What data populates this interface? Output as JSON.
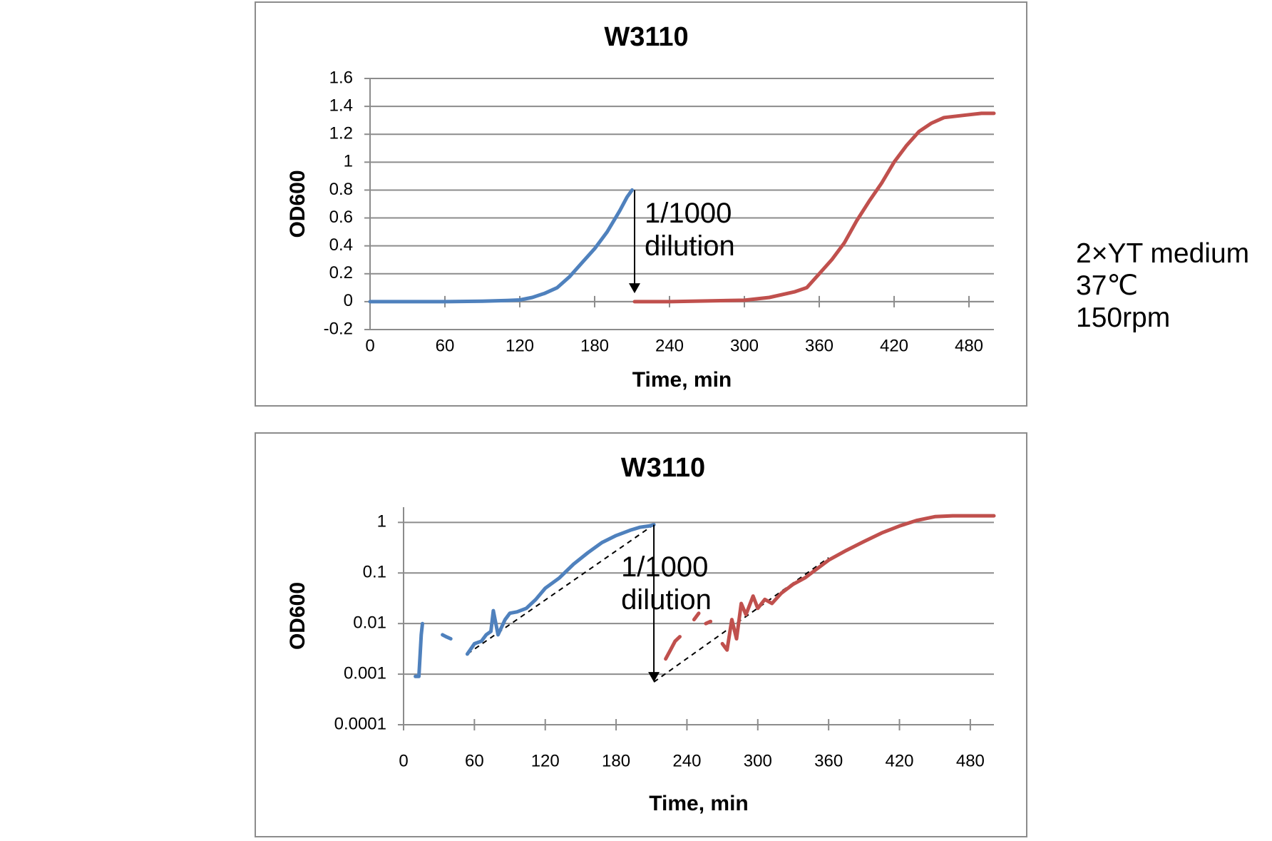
{
  "conditions": [
    "2×YT medium",
    "37℃",
    "150rpm"
  ],
  "colors": {
    "series1": "#4f81bd",
    "series2": "#c0504d",
    "grid": "#8c8c8c",
    "axis": "#8c8c8c"
  },
  "chart_data": [
    {
      "type": "line",
      "title": "W3110",
      "xlabel": "Time, min",
      "ylabel": "OD600",
      "xlim": [
        0,
        500
      ],
      "ylim": [
        -0.2,
        1.6
      ],
      "yscale": "linear",
      "xticks": [
        0,
        60,
        120,
        180,
        240,
        300,
        360,
        420,
        480
      ],
      "yticks": [
        -0.2,
        0,
        0.2,
        0.4,
        0.6,
        0.8,
        1,
        1.2,
        1.4,
        1.6
      ],
      "ytick_labels": [
        "-0.2",
        "0",
        "0.2",
        "0.4",
        "0.6",
        "0.8",
        "1",
        "1.2",
        "1.4",
        "1.6"
      ],
      "grid": true,
      "series": [
        {
          "color": "#4f81bd",
          "x": [
            0,
            30,
            60,
            90,
            110,
            120,
            130,
            140,
            150,
            160,
            170,
            180,
            190,
            200,
            206,
            210
          ],
          "y": [
            0,
            0,
            0,
            0.003,
            0.008,
            0.012,
            0.03,
            0.06,
            0.1,
            0.18,
            0.28,
            0.38,
            0.5,
            0.65,
            0.75,
            0.8
          ]
        },
        {
          "color": "#c0504d",
          "x": [
            212,
            240,
            270,
            300,
            320,
            340,
            350,
            360,
            370,
            380,
            390,
            400,
            410,
            420,
            430,
            440,
            450,
            460,
            470,
            480,
            490,
            500
          ],
          "y": [
            0,
            0,
            0.005,
            0.01,
            0.03,
            0.07,
            0.1,
            0.2,
            0.3,
            0.42,
            0.58,
            0.72,
            0.85,
            1.0,
            1.12,
            1.22,
            1.28,
            1.32,
            1.33,
            1.34,
            1.35,
            1.35
          ]
        }
      ],
      "annotation": {
        "lines": [
          "1/1000",
          "dilution"
        ],
        "arrow_x": 212,
        "arrow_from": 0.8,
        "arrow_to": 0.06
      }
    },
    {
      "type": "line",
      "title": "W3110",
      "xlabel": "Time, min",
      "ylabel": "OD600",
      "xlim": [
        0,
        500
      ],
      "ylim": [
        0.0001,
        2
      ],
      "yscale": "log",
      "xticks": [
        0,
        60,
        120,
        180,
        240,
        300,
        360,
        420,
        480
      ],
      "yticks": [
        0.0001,
        0.001,
        0.01,
        0.1,
        1
      ],
      "ytick_labels": [
        "0.0001",
        "0.001",
        "0.01",
        "0.1",
        "1"
      ],
      "grid": true,
      "series": [
        {
          "color": "#4f81bd",
          "segments": [
            {
              "x": [
                10,
                13,
                15,
                16
              ],
              "y": [
                0.0009,
                0.0009,
                0.006,
                0.01
              ]
            },
            {
              "x": [
                33,
                36,
                40
              ],
              "y": [
                0.006,
                0.0055,
                0.005
              ]
            },
            {
              "x": [
                54,
                60,
                66,
                70,
                74,
                76,
                80,
                86,
                90,
                96,
                104,
                112,
                120,
                132,
                144,
                156,
                168,
                180,
                192,
                200,
                208,
                212
              ],
              "y": [
                0.0025,
                0.004,
                0.0045,
                0.006,
                0.007,
                0.018,
                0.006,
                0.012,
                0.016,
                0.017,
                0.02,
                0.03,
                0.05,
                0.08,
                0.15,
                0.25,
                0.4,
                0.55,
                0.7,
                0.8,
                0.85,
                0.9
              ]
            }
          ]
        },
        {
          "color": "#c0504d",
          "segments": [
            {
              "x": [
                222,
                226,
                230,
                234
              ],
              "y": [
                0.002,
                0.003,
                0.0045,
                0.0055
              ]
            },
            {
              "x": [
                246,
                250
              ],
              "y": [
                0.012,
                0.016
              ]
            },
            {
              "x": [
                256,
                260
              ],
              "y": [
                0.01,
                0.011
              ]
            },
            {
              "x": [
                270,
                274,
                278,
                282,
                286,
                290,
                296,
                300,
                306,
                312,
                320,
                330,
                340,
                350,
                360,
                375,
                390,
                405,
                420,
                435,
                450,
                465,
                480,
                500
              ],
              "y": [
                0.004,
                0.003,
                0.012,
                0.005,
                0.025,
                0.015,
                0.035,
                0.02,
                0.03,
                0.025,
                0.04,
                0.06,
                0.08,
                0.12,
                0.18,
                0.28,
                0.42,
                0.62,
                0.85,
                1.1,
                1.3,
                1.35,
                1.35,
                1.35
              ]
            }
          ]
        }
      ],
      "trendlines": [
        {
          "x": [
            54,
            212
          ],
          "y": [
            0.0025,
            0.9
          ]
        },
        {
          "x": [
            212,
            360
          ],
          "y": [
            0.0007,
            0.2
          ]
        }
      ],
      "annotation": {
        "lines": [
          "1/1000",
          "dilution"
        ],
        "arrow_x": 212,
        "arrow_from": 0.9,
        "arrow_to": 0.0007
      }
    }
  ]
}
